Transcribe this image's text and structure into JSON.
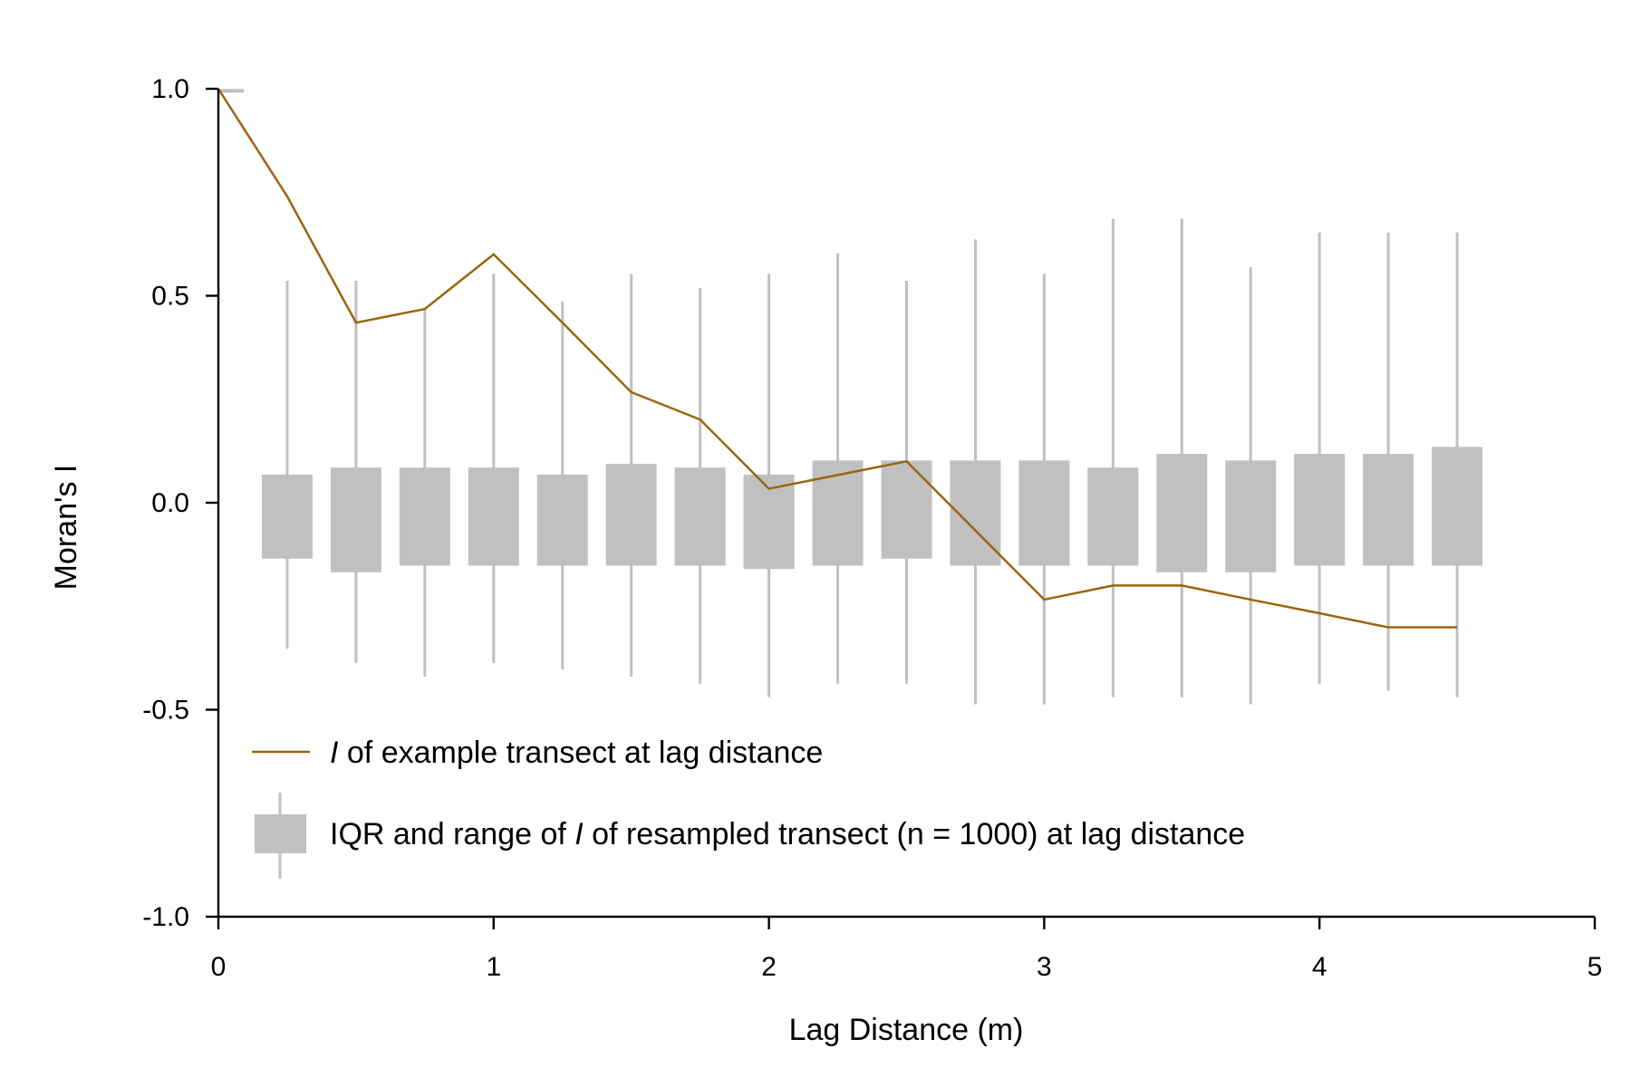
{
  "chart_data": {
    "type": "box",
    "xlabel": "Lag Distance (m)",
    "ylabel": "Moran's I",
    "xlim": [
      0,
      5
    ],
    "ylim": [
      -1.0,
      1.0
    ],
    "xticks": [
      "0",
      "1",
      "2",
      "3",
      "4",
      "5"
    ],
    "yticks": [
      "-1.0",
      "-0.5",
      "0.0",
      "0.5",
      "1.0"
    ],
    "grid": false,
    "legend_position": "bottom-left",
    "colors": {
      "line": "#99650f",
      "box": "#c0c0c0",
      "axis": "#000000"
    },
    "series": [
      {
        "name": "I of example transect at lag distance",
        "type": "line",
        "x": [
          0,
          0.25,
          0.5,
          0.75,
          1.0,
          1.25,
          1.5,
          1.75,
          2.0,
          2.25,
          2.5,
          2.75,
          3.0,
          3.25,
          3.5,
          3.75,
          4.0,
          4.25,
          4.5
        ],
        "y": [
          1.0,
          0.74,
          0.435,
          0.468,
          0.6,
          0.435,
          0.267,
          0.201,
          0.034,
          0.067,
          0.1,
          -0.067,
          -0.234,
          -0.2,
          -0.2,
          -0.234,
          -0.267,
          -0.301,
          -0.301
        ]
      },
      {
        "name": "IQR and range of I of resampled transect (n = 1000) at lag distance",
        "type": "box",
        "x": [
          0.25,
          0.5,
          0.75,
          1.0,
          1.25,
          1.5,
          1.75,
          2.0,
          2.25,
          2.5,
          2.75,
          3.0,
          3.25,
          3.5,
          3.75,
          4.0,
          4.25,
          4.5
        ],
        "min": [
          -0.353,
          -0.387,
          -0.42,
          -0.387,
          -0.403,
          -0.42,
          -0.437,
          -0.47,
          -0.437,
          -0.437,
          -0.487,
          -0.487,
          -0.47,
          -0.47,
          -0.487,
          -0.437,
          -0.454,
          -0.47
        ],
        "q1": [
          -0.135,
          -0.168,
          -0.152,
          -0.152,
          -0.152,
          -0.152,
          -0.152,
          -0.16,
          -0.152,
          -0.135,
          -0.152,
          -0.152,
          -0.152,
          -0.168,
          -0.168,
          -0.152,
          -0.152,
          -0.152
        ],
        "q3": [
          0.068,
          0.085,
          0.085,
          0.085,
          0.068,
          0.094,
          0.085,
          0.068,
          0.102,
          0.102,
          0.102,
          0.102,
          0.085,
          0.118,
          0.102,
          0.118,
          0.118,
          0.135
        ],
        "max": [
          0.536,
          0.536,
          0.469,
          0.553,
          0.486,
          0.553,
          0.519,
          0.553,
          0.603,
          0.536,
          0.636,
          0.553,
          0.686,
          0.686,
          0.569,
          0.653,
          0.653,
          0.653
        ]
      }
    ],
    "extra_marks": [
      {
        "type": "tick",
        "x": 0.0,
        "y": 0.995
      }
    ]
  },
  "legend": {
    "line_italic": "I",
    "line_rest": " of example transect at lag distance",
    "box_pre": "IQR and range of ",
    "box_italic": "I",
    "box_post": " of resampled transect (n = 1000) at lag distance"
  }
}
